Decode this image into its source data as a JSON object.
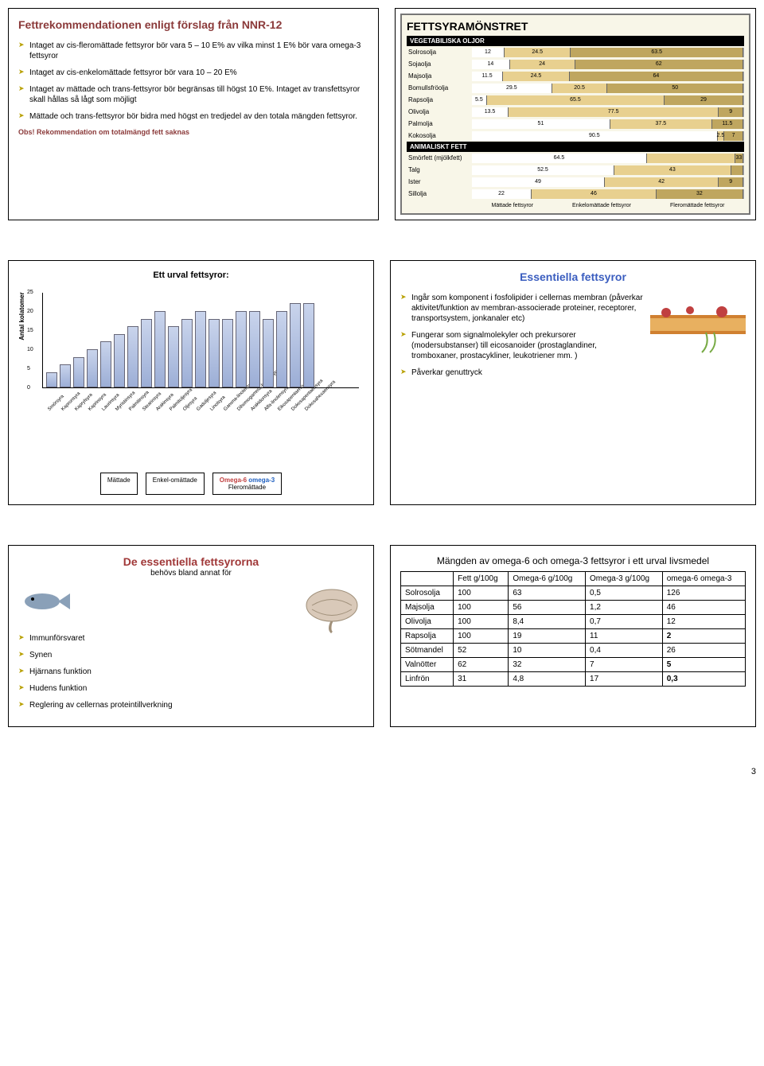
{
  "panel1": {
    "title": "Fettrekommendationen enligt förslag från NNR-12",
    "items": [
      "Intaget av cis-fleromättade fettsyror bör vara 5 – 10 E% av vilka minst 1 E% bör vara omega-3 fettsyror",
      "Intaget av cis-enkelomättade fettsyror bör vara 10 – 20 E%",
      "Intaget av mättade och trans-fettsyror bör begränsas till högst 10 E%. Intaget av transfettsyror skall hållas så lågt som möjligt",
      "Mättade och trans-fettsyror bör bidra med högst en tredjedel av den totala mängden fettsyror."
    ],
    "obs": "Obs! Rekommendation om totalmängd fett saknas"
  },
  "stackChart": {
    "title": "FETTSYRAMÖNSTRET",
    "section1": "VEGETABILISKA OLJOR",
    "section2": "ANIMALISKT FETT",
    "colors": {
      "sat": "#ffffff",
      "mono": "#e8d08f",
      "poly": "#bfa65f"
    },
    "rows1": [
      {
        "name": "Solrosolja",
        "v": [
          12,
          24.5,
          63.5
        ]
      },
      {
        "name": "Sojaolja",
        "v": [
          14,
          24,
          62
        ]
      },
      {
        "name": "Majsolja",
        "v": [
          11.5,
          24.5,
          64
        ]
      },
      {
        "name": "Bomullsfröolja",
        "v": [
          29.5,
          20.5,
          50
        ]
      },
      {
        "name": "Rapsolja",
        "v": [
          5.5,
          65.5,
          29
        ]
      },
      {
        "name": "Olivolja",
        "v": [
          13.5,
          77.5,
          9
        ]
      },
      {
        "name": "Palmolja",
        "v": [
          51,
          37.5,
          11.5
        ]
      },
      {
        "name": "Kokosolja",
        "v": [
          90.5,
          2.5,
          7
        ]
      }
    ],
    "rows2": [
      {
        "name": "Smörfett (mjölkfett)",
        "v": [
          64.5,
          32.5,
          3
        ],
        "show": [
          64.5,
          "",
          33
        ]
      },
      {
        "name": "Talg",
        "v": [
          52.5,
          43,
          4.5
        ],
        "show": [
          52.5,
          43,
          ""
        ]
      },
      {
        "name": "Ister",
        "v": [
          49,
          42,
          9
        ]
      },
      {
        "name": "Sillolja",
        "v": [
          22,
          46,
          32
        ]
      }
    ],
    "legend": [
      "Mättade fettsyror",
      "Enkelomättade fettsyror",
      "Fleromättade fettsyror"
    ]
  },
  "barChart": {
    "title": "Ett urval fettsyror:",
    "ylabel": "Antal kolatomer",
    "ymax": 25,
    "ytick": 5,
    "bars": [
      {
        "name": "Smörsyra",
        "v": 4
      },
      {
        "name": "Kapronsyra",
        "v": 6
      },
      {
        "name": "Kaprylsyra",
        "v": 8
      },
      {
        "name": "Kaprinsyra",
        "v": 10
      },
      {
        "name": "Laurinsyra",
        "v": 12
      },
      {
        "name": "Myristinsyra",
        "v": 14
      },
      {
        "name": "Palmitinsyra",
        "v": 16
      },
      {
        "name": "Stearinsyra",
        "v": 18
      },
      {
        "name": "Arakinsyra",
        "v": 20
      },
      {
        "name": "Palmitoljesyra",
        "v": 16
      },
      {
        "name": "Oljesyra",
        "v": 18
      },
      {
        "name": "Gadoljesyra",
        "v": 20
      },
      {
        "name": "Linolsyra",
        "v": 18
      },
      {
        "name": "Gamma-linolensyra",
        "v": 18
      },
      {
        "name": "Dihomogamma-linolensyra",
        "v": 20
      },
      {
        "name": "Arakidonsyra",
        "v": 20
      },
      {
        "name": "Alfa-linolensyra",
        "v": 18
      },
      {
        "name": "Eikosapentaensyra",
        "v": 20
      },
      {
        "name": "Dokosapentaensyra",
        "v": 22
      },
      {
        "name": "Dokosahexaensyra",
        "v": 22
      }
    ],
    "cats": {
      "mattade": "Mättade",
      "enkel": "Enkel-omättade",
      "o6": "Omega-6",
      "o3": "omega-3",
      "poly": "Fleromättade"
    }
  },
  "essential": {
    "title": "Essentiella fettsyror",
    "items": [
      "Ingår som komponent i fosfolipider i cellernas membran (påverkar aktivitet/funktion av membran-associerade proteiner, receptorer, transportsystem, jonkanaler etc)",
      "Fungerar som signalmolekyler och prekursorer (modersubstanser) till eicosanoider (prostaglandiner, tromboxaner, prostacykliner, leukotriener mm. )",
      "Påverkar genuttryck"
    ]
  },
  "panel5": {
    "title": "De essentiella fettsyrorna",
    "sub": "behövs bland annat för",
    "items": [
      "Immunförsvaret",
      "Synen",
      "Hjärnans funktion",
      "Hudens funktion",
      "Reglering av cellernas proteintillverkning"
    ]
  },
  "table": {
    "title": "Mängden av omega-6 och omega-3 fettsyror i ett urval livsmedel",
    "headers": [
      "",
      "Fett g/100g",
      "Omega-6 g/100g",
      "Omega-3 g/100g",
      "omega-6 omega-3"
    ],
    "rows": [
      [
        "Solrosolja",
        "100",
        "63",
        "0,5",
        "126"
      ],
      [
        "Majsolja",
        "100",
        "56",
        "1,2",
        "46"
      ],
      [
        "Olivolja",
        "100",
        "8,4",
        "0,7",
        "12"
      ],
      [
        "Rapsolja",
        "100",
        "19",
        "11",
        "2"
      ],
      [
        "Sötmandel",
        "52",
        "10",
        "0,4",
        "26"
      ],
      [
        "Valnötter",
        "62",
        "32",
        "7",
        "5"
      ],
      [
        "Linfrön",
        "31",
        "4,8",
        "17",
        "0,3"
      ]
    ],
    "boldRows": [
      3,
      5,
      6
    ]
  },
  "pageNum": "3"
}
